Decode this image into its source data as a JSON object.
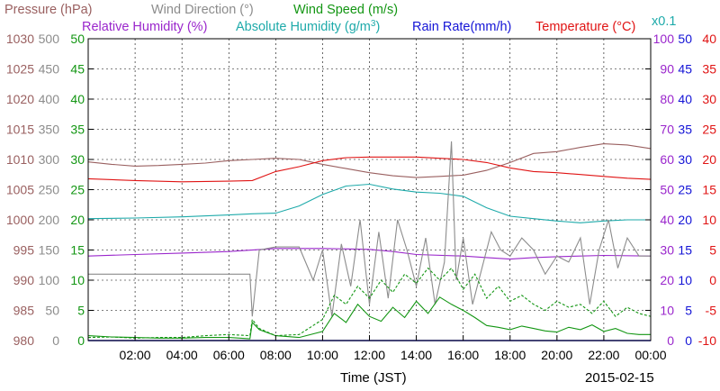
{
  "chart_data": {
    "type": "line",
    "date": "2015-02-15",
    "xlabel": "Time (JST)",
    "x_ticks": [
      "02:00",
      "04:00",
      "06:00",
      "08:00",
      "10:00",
      "12:00",
      "14:00",
      "16:00",
      "18:00",
      "20:00",
      "22:00",
      "00:00"
    ],
    "xlim": [
      0,
      24
    ],
    "grid": true,
    "titles": {
      "pressure": "Pressure (hPa)",
      "wind_direction": "Wind Direction (°)",
      "wind_speed": "Wind Speed (m/s)",
      "relative_humidity": "Relative Humidity (%)",
      "absolute_humidity_prefix": "Absolute Humidity (g/m",
      "absolute_humidity_sup": "3",
      "absolute_humidity_suffix": ")",
      "rain_rate": "Rain Rate(mm/h)",
      "temperature": "Temperature (°C)",
      "rain_multiplier": "x0.1"
    },
    "axes": {
      "pressure": {
        "min": 980,
        "max": 1030,
        "ticks": [
          "1030",
          "1025",
          "1020",
          "1015",
          "1010",
          "1005",
          "1000",
          "995",
          "990",
          "985",
          "980"
        ],
        "color": "#9a6060"
      },
      "wind_direction": {
        "min": 0,
        "max": 500,
        "ticks": [
          "500",
          "450",
          "400",
          "350",
          "300",
          "250",
          "200",
          "150",
          "100",
          "50",
          "0"
        ],
        "color": "#8c8c8c"
      },
      "wind_speed": {
        "min": 0,
        "max": 50,
        "ticks": [
          "50",
          "45",
          "40",
          "35",
          "30",
          "25",
          "20",
          "15",
          "10",
          "5",
          "0"
        ],
        "color": "#139613"
      },
      "relative_humidity": {
        "min": 0,
        "max": 100,
        "ticks": [
          "100",
          "90",
          "80",
          "70",
          "60",
          "50",
          "40",
          "30",
          "20",
          "10",
          "0"
        ],
        "color": "#9a26cc"
      },
      "rain_rate": {
        "min": 0,
        "max": 50,
        "ticks": [
          "50",
          "45",
          "40",
          "35",
          "30",
          "25",
          "20",
          "15",
          "10",
          "5",
          "0"
        ],
        "color": "#1414d6"
      },
      "temperature": {
        "min": -10,
        "max": 40,
        "ticks": [
          "40",
          "35",
          "30",
          "25",
          "20",
          "15",
          "10",
          "5",
          "0",
          "-5",
          "-10"
        ],
        "color": "#e01414"
      }
    },
    "series": [
      {
        "key": "pressure",
        "axis": "pressure",
        "color": "#9a6060",
        "points": [
          [
            0,
            1009.6
          ],
          [
            1,
            1009.2
          ],
          [
            2,
            1008.9
          ],
          [
            3,
            1009.0
          ],
          [
            4,
            1009.2
          ],
          [
            5,
            1009.4
          ],
          [
            6,
            1009.8
          ],
          [
            7,
            1010.0
          ],
          [
            8,
            1010.2
          ],
          [
            9,
            1010.0
          ],
          [
            10,
            1009.2
          ],
          [
            11,
            1008.5
          ],
          [
            12,
            1007.8
          ],
          [
            13,
            1007.3
          ],
          [
            14,
            1007.0
          ],
          [
            15,
            1007.2
          ],
          [
            16,
            1007.4
          ],
          [
            17,
            1008.2
          ],
          [
            18,
            1009.5
          ],
          [
            19,
            1011.0
          ],
          [
            20,
            1011.3
          ],
          [
            21,
            1012.0
          ],
          [
            22,
            1012.6
          ],
          [
            23,
            1012.4
          ],
          [
            24,
            1011.8
          ]
        ]
      },
      {
        "key": "absolute_humidity",
        "axis": "wind_speed",
        "color": "#1eaaaa",
        "points": [
          [
            0,
            20.2
          ],
          [
            2,
            20.3
          ],
          [
            4,
            20.5
          ],
          [
            6,
            20.8
          ],
          [
            7,
            21.0
          ],
          [
            8,
            21.1
          ],
          [
            9,
            22.3
          ],
          [
            10,
            24.2
          ],
          [
            11,
            25.6
          ],
          [
            12,
            25.9
          ],
          [
            13,
            25.1
          ],
          [
            14,
            24.6
          ],
          [
            15,
            24.4
          ],
          [
            16,
            23.9
          ],
          [
            17,
            22.0
          ],
          [
            18,
            20.6
          ],
          [
            19,
            20.2
          ],
          [
            20,
            19.8
          ],
          [
            21,
            19.5
          ],
          [
            22,
            19.8
          ],
          [
            23,
            20.0
          ],
          [
            24,
            20.0
          ]
        ]
      },
      {
        "key": "temperature",
        "axis": "temperature",
        "color": "#e01414",
        "points": [
          [
            0,
            16.8
          ],
          [
            2,
            16.5
          ],
          [
            4,
            16.3
          ],
          [
            6,
            16.4
          ],
          [
            7,
            16.5
          ],
          [
            8,
            18.0
          ],
          [
            9,
            18.8
          ],
          [
            10,
            19.8
          ],
          [
            11,
            20.3
          ],
          [
            12,
            20.4
          ],
          [
            13,
            20.4
          ],
          [
            14,
            20.4
          ],
          [
            15,
            20.2
          ],
          [
            16,
            20.0
          ],
          [
            17,
            19.5
          ],
          [
            18,
            18.6
          ],
          [
            19,
            18.0
          ],
          [
            20,
            17.8
          ],
          [
            21,
            17.5
          ],
          [
            22,
            17.2
          ],
          [
            23,
            16.9
          ],
          [
            24,
            16.7
          ]
        ]
      },
      {
        "key": "relative_humidity",
        "axis": "relative_humidity",
        "color": "#9a26cc",
        "points": [
          [
            0,
            28
          ],
          [
            2,
            28.5
          ],
          [
            4,
            29
          ],
          [
            6,
            29.5
          ],
          [
            8,
            30.5
          ],
          [
            10,
            30.5
          ],
          [
            12,
            30.2
          ],
          [
            13,
            29.5
          ],
          [
            14,
            28.5
          ],
          [
            16,
            28.0
          ],
          [
            17,
            27.5
          ],
          [
            18,
            27.0
          ],
          [
            19,
            27.5
          ],
          [
            20,
            27.8
          ],
          [
            22,
            28.2
          ],
          [
            24,
            28.0
          ]
        ]
      },
      {
        "key": "rain_rate",
        "axis": "rain_rate",
        "color": "#1414d6",
        "points": [
          [
            0,
            0
          ],
          [
            24,
            0
          ]
        ]
      },
      {
        "key": "wind_direction",
        "axis": "wind_direction",
        "color": "#8c8c8c",
        "points": [
          [
            0,
            110
          ],
          [
            1,
            110
          ],
          [
            2,
            110
          ],
          [
            3,
            110
          ],
          [
            4,
            110
          ],
          [
            5,
            110
          ],
          [
            6,
            110
          ],
          [
            6.9,
            110
          ],
          [
            7.0,
            40
          ],
          [
            7.3,
            150
          ],
          [
            8,
            155
          ],
          [
            9,
            155
          ],
          [
            9.6,
            100
          ],
          [
            10,
            150
          ],
          [
            10.4,
            40
          ],
          [
            10.8,
            160
          ],
          [
            11.2,
            90
          ],
          [
            11.6,
            200
          ],
          [
            12,
            60
          ],
          [
            12.4,
            180
          ],
          [
            12.8,
            70
          ],
          [
            13.2,
            200
          ],
          [
            13.6,
            150
          ],
          [
            14,
            90
          ],
          [
            14.4,
            170
          ],
          [
            14.8,
            60
          ],
          [
            15.2,
            130
          ],
          [
            15.5,
            330
          ],
          [
            15.7,
            100
          ],
          [
            16,
            170
          ],
          [
            16.4,
            60
          ],
          [
            16.8,
            120
          ],
          [
            17.2,
            180
          ],
          [
            17.6,
            150
          ],
          [
            18,
            140
          ],
          [
            18.5,
            170
          ],
          [
            19,
            150
          ],
          [
            19.5,
            110
          ],
          [
            20,
            140
          ],
          [
            20.5,
            130
          ],
          [
            21,
            170
          ],
          [
            21.4,
            60
          ],
          [
            21.8,
            150
          ],
          [
            22.2,
            200
          ],
          [
            22.6,
            120
          ],
          [
            23,
            170
          ],
          [
            23.5,
            140
          ],
          [
            24,
            140
          ]
        ]
      },
      {
        "key": "wind_speed",
        "axis": "wind_speed",
        "color": "#139613",
        "points": [
          [
            0,
            0.8
          ],
          [
            1,
            0.6
          ],
          [
            2,
            0.5
          ],
          [
            3,
            0.4
          ],
          [
            4,
            0.4
          ],
          [
            5,
            0.5
          ],
          [
            6,
            0.5
          ],
          [
            6.9,
            0.3
          ],
          [
            7.0,
            3.0
          ],
          [
            7.3,
            1.8
          ],
          [
            8,
            0.8
          ],
          [
            9,
            0.5
          ],
          [
            10,
            1.5
          ],
          [
            10.5,
            4.5
          ],
          [
            11,
            3.0
          ],
          [
            11.5,
            6.0
          ],
          [
            12,
            4.0
          ],
          [
            12.5,
            3.2
          ],
          [
            13,
            5.5
          ],
          [
            13.5,
            3.8
          ],
          [
            14,
            6.5
          ],
          [
            14.5,
            4.5
          ],
          [
            15,
            7.2
          ],
          [
            15.5,
            6.0
          ],
          [
            16,
            5.0
          ],
          [
            16.5,
            3.8
          ],
          [
            17,
            2.5
          ],
          [
            17.5,
            2.2
          ],
          [
            18,
            1.8
          ],
          [
            18.5,
            2.4
          ],
          [
            19,
            2.0
          ],
          [
            19.5,
            1.6
          ],
          [
            20,
            1.4
          ],
          [
            20.5,
            2.2
          ],
          [
            21,
            1.8
          ],
          [
            21.5,
            2.6
          ],
          [
            22,
            1.5
          ],
          [
            22.5,
            2.0
          ],
          [
            23,
            1.2
          ],
          [
            23.5,
            1.0
          ],
          [
            24,
            1.0
          ]
        ]
      },
      {
        "key": "wind_gust",
        "axis": "wind_speed",
        "color": "#139613",
        "dashed": true,
        "points": [
          [
            0,
            0.5
          ],
          [
            1,
            0.6
          ],
          [
            2,
            0.4
          ],
          [
            3,
            0.5
          ],
          [
            4,
            0.5
          ],
          [
            5,
            0.8
          ],
          [
            6,
            1.0
          ],
          [
            6.9,
            0.8
          ],
          [
            7.0,
            3.5
          ],
          [
            7.3,
            2.0
          ],
          [
            8,
            0.8
          ],
          [
            9,
            1.0
          ],
          [
            10,
            3.5
          ],
          [
            10.5,
            7.5
          ],
          [
            11,
            6.0
          ],
          [
            11.5,
            9.0
          ],
          [
            12,
            7.0
          ],
          [
            12.5,
            10.0
          ],
          [
            13,
            8.0
          ],
          [
            13.5,
            11.0
          ],
          [
            14,
            9.5
          ],
          [
            14.5,
            12.0
          ],
          [
            15,
            10.0
          ],
          [
            15.5,
            12.0
          ],
          [
            16,
            8.5
          ],
          [
            16.5,
            11.0
          ],
          [
            17,
            7.0
          ],
          [
            17.5,
            9.0
          ],
          [
            18,
            6.5
          ],
          [
            18.5,
            7.5
          ],
          [
            19,
            6.0
          ],
          [
            19.5,
            5.0
          ],
          [
            20,
            6.5
          ],
          [
            20.5,
            5.5
          ],
          [
            21,
            6.0
          ],
          [
            21.5,
            4.5
          ],
          [
            22,
            6.5
          ],
          [
            22.5,
            4.0
          ],
          [
            23,
            5.5
          ],
          [
            23.5,
            4.5
          ],
          [
            24,
            4.0
          ]
        ]
      }
    ]
  }
}
